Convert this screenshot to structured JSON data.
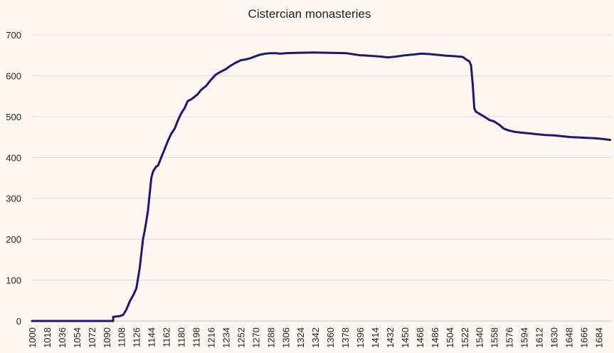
{
  "chart_data": {
    "type": "line",
    "title": "Cistercian monasteries",
    "xlabel": "",
    "ylabel": "",
    "xlim": [
      1000,
      1700
    ],
    "ylim": [
      0,
      700
    ],
    "yticks": [
      0,
      100,
      200,
      300,
      400,
      500,
      600,
      700
    ],
    "xticks": [
      1000,
      1018,
      1036,
      1054,
      1072,
      1090,
      1108,
      1126,
      1144,
      1162,
      1180,
      1198,
      1216,
      1234,
      1252,
      1270,
      1288,
      1306,
      1324,
      1342,
      1360,
      1378,
      1396,
      1414,
      1432,
      1450,
      1468,
      1486,
      1504,
      1522,
      1540,
      1558,
      1576,
      1594,
      1612,
      1630,
      1648,
      1666,
      1684
    ],
    "grid": true,
    "legend": "none",
    "colors": {
      "line": "#1f1a66",
      "background": "#fdf6f2",
      "grid": "#d9d9d9"
    },
    "series": [
      {
        "x": [
          1000,
          1098,
          1098,
          1106,
          1110,
          1114,
          1118,
          1122,
          1126,
          1130,
          1134,
          1136,
          1138,
          1140,
          1142,
          1144,
          1146,
          1148,
          1150,
          1152,
          1156,
          1160,
          1164,
          1168,
          1172,
          1176,
          1180,
          1184,
          1188,
          1192,
          1196,
          1200,
          1204,
          1210,
          1216,
          1222,
          1228,
          1234,
          1240,
          1246,
          1252,
          1258,
          1264,
          1270,
          1276,
          1282,
          1288,
          1294,
          1300,
          1306,
          1320,
          1340,
          1360,
          1380,
          1396,
          1400,
          1420,
          1430,
          1440,
          1450,
          1460,
          1470,
          1480,
          1490,
          1500,
          1510,
          1520,
          1524,
          1528,
          1530,
          1532,
          1534,
          1536,
          1540,
          1546,
          1552,
          1558,
          1564,
          1570,
          1576,
          1582,
          1590,
          1600,
          1610,
          1620,
          1630,
          1640,
          1650,
          1660,
          1670,
          1680,
          1690,
          1698
        ],
        "values": [
          0,
          0,
          10,
          12,
          15,
          28,
          48,
          62,
          80,
          130,
          200,
          220,
          245,
          270,
          310,
          350,
          365,
          372,
          378,
          380,
          400,
          420,
          440,
          458,
          470,
          490,
          508,
          520,
          538,
          542,
          548,
          555,
          565,
          575,
          590,
          603,
          610,
          616,
          625,
          632,
          638,
          640,
          643,
          648,
          652,
          654,
          655,
          655,
          654,
          655,
          656,
          657,
          656,
          655,
          650,
          650,
          647,
          645,
          647,
          650,
          652,
          654,
          653,
          651,
          649,
          648,
          646,
          640,
          635,
          625,
          580,
          520,
          512,
          507,
          500,
          492,
          488,
          480,
          470,
          466,
          463,
          461,
          459,
          457,
          455,
          454,
          452,
          450,
          449,
          448,
          447,
          445,
          443
        ]
      }
    ]
  }
}
